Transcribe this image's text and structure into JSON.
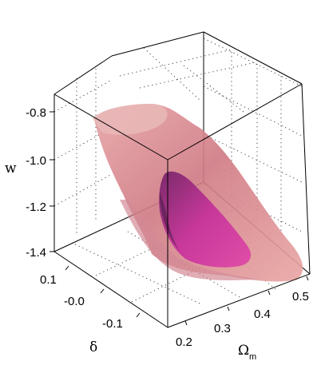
{
  "chart_data": {
    "type": "surface3d",
    "title": "",
    "axes": {
      "w": {
        "label": "w",
        "range": [
          -1.4,
          -0.7
        ],
        "ticks": [
          "-0.8",
          "-1.0",
          "-1.2",
          "-1.4"
        ]
      },
      "delta": {
        "label": "δ",
        "range": [
          -0.15,
          0.15
        ],
        "ticks": [
          "0.1",
          "-0.0",
          "-0.1"
        ]
      },
      "omega_m": {
        "label": "Ω",
        "label_sub": "m",
        "range": [
          0.2,
          0.5
        ],
        "ticks": [
          "0.2",
          "0.3",
          "0.4",
          "0.5"
        ]
      }
    },
    "grid": true,
    "series": [
      {
        "name": "",
        "kind": "outer-confidence-surface",
        "color": "#d8868e"
      },
      {
        "name": "",
        "kind": "inner-confidence-surface",
        "color": "#c8388f"
      }
    ]
  }
}
